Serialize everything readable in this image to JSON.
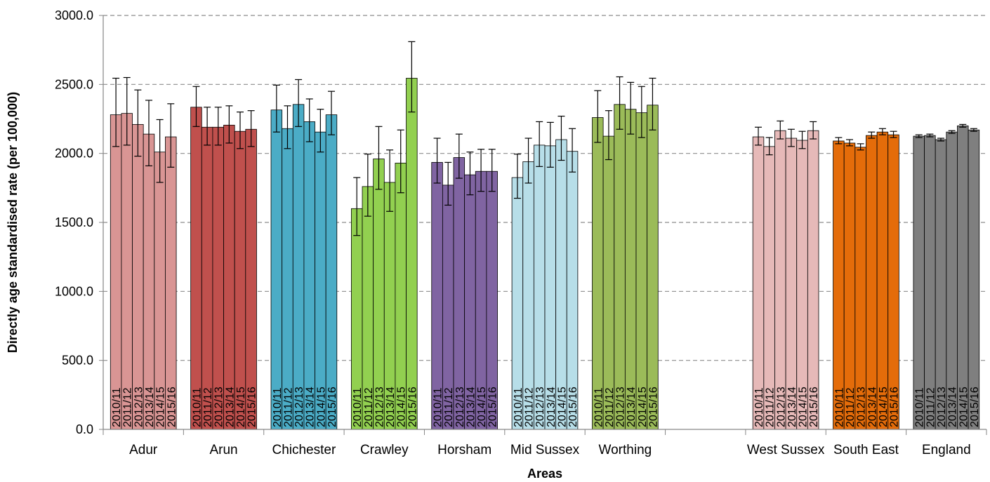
{
  "chart_data": {
    "type": "bar",
    "xlabel": "Areas",
    "ylabel": "Directly age standardised rate (per 100,000)",
    "ylim": [
      0,
      3000
    ],
    "yticks": [
      "0.0",
      "500.0",
      "1000.0",
      "1500.0",
      "2000.0",
      "2500.0",
      "3000.0"
    ],
    "grid": true,
    "periods": [
      "2010/11",
      "2011/12",
      "2012/13",
      "2013/14",
      "2014/15",
      "2015/16"
    ],
    "groups": [
      {
        "name": "Adur",
        "color": "#d99594",
        "values": [
          2280,
          2290,
          2210,
          2140,
          2010,
          2120
        ],
        "lower": [
          2050,
          2060,
          1980,
          1910,
          1790,
          1900
        ],
        "upper": [
          2545,
          2550,
          2460,
          2385,
          2245,
          2360
        ]
      },
      {
        "name": "Arun",
        "color": "#c0504d",
        "values": [
          2335,
          2190,
          2190,
          2205,
          2160,
          2175
        ],
        "lower": [
          2195,
          2060,
          2060,
          2075,
          2035,
          2050
        ],
        "upper": [
          2485,
          2335,
          2335,
          2345,
          2300,
          2310
        ]
      },
      {
        "name": "Chichester",
        "color": "#4bacc6",
        "values": [
          2315,
          2180,
          2355,
          2230,
          2155,
          2280
        ],
        "lower": [
          2155,
          2035,
          2195,
          2085,
          2010,
          2135
        ],
        "upper": [
          2495,
          2345,
          2535,
          2395,
          2320,
          2450
        ]
      },
      {
        "name": "Crawley",
        "color": "#92d050",
        "values": [
          1600,
          1760,
          1960,
          1790,
          1930,
          2545
        ],
        "lower": [
          1405,
          1545,
          1740,
          1580,
          1715,
          2300
        ],
        "upper": [
          1825,
          1995,
          2195,
          2025,
          2170,
          2810
        ]
      },
      {
        "name": "Horsham",
        "color": "#8064a2",
        "values": [
          1935,
          1770,
          1970,
          1845,
          1870,
          1870
        ],
        "lower": [
          1785,
          1625,
          1820,
          1700,
          1725,
          1725
        ],
        "upper": [
          2110,
          1935,
          2140,
          2010,
          2030,
          2030
        ]
      },
      {
        "name": "Mid Sussex",
        "color": "#b7dee8",
        "values": [
          1825,
          1940,
          2060,
          2055,
          2100,
          2015
        ],
        "lower": [
          1675,
          1785,
          1905,
          1900,
          1950,
          1865
        ],
        "upper": [
          1995,
          2110,
          2230,
          2225,
          2270,
          2180
        ]
      },
      {
        "name": "Worthing",
        "color": "#9bbb59",
        "values": [
          2260,
          2125,
          2355,
          2320,
          2295,
          2350
        ],
        "lower": [
          2080,
          1955,
          2175,
          2140,
          2115,
          2170
        ],
        "upper": [
          2455,
          2310,
          2555,
          2515,
          2485,
          2545
        ]
      },
      {
        "name": "West Sussex",
        "color": "#e6b9b8",
        "values": [
          2120,
          2050,
          2165,
          2110,
          2095,
          2165
        ],
        "lower": [
          2060,
          1990,
          2105,
          2050,
          2035,
          2105
        ],
        "upper": [
          2190,
          2115,
          2235,
          2175,
          2160,
          2230
        ]
      },
      {
        "name": "South East",
        "color": "#e46c0a",
        "values": [
          2090,
          2075,
          2045,
          2130,
          2155,
          2135
        ],
        "lower": [
          2070,
          2055,
          2025,
          2110,
          2135,
          2115
        ],
        "upper": [
          2115,
          2100,
          2070,
          2155,
          2180,
          2160
        ]
      },
      {
        "name": "England",
        "color": "#7f7f7f",
        "values": [
          2125,
          2130,
          2100,
          2155,
          2200,
          2170
        ],
        "lower": [
          2115,
          2120,
          2090,
          2145,
          2190,
          2160
        ],
        "upper": [
          2135,
          2140,
          2110,
          2165,
          2210,
          2180
        ]
      }
    ],
    "category_labels": [
      "Adur",
      "Arun",
      "Chichester",
      "Crawley",
      "Horsham",
      "Mid Sussex",
      "Worthing",
      "",
      "West Sussex",
      "South East",
      "England"
    ]
  }
}
